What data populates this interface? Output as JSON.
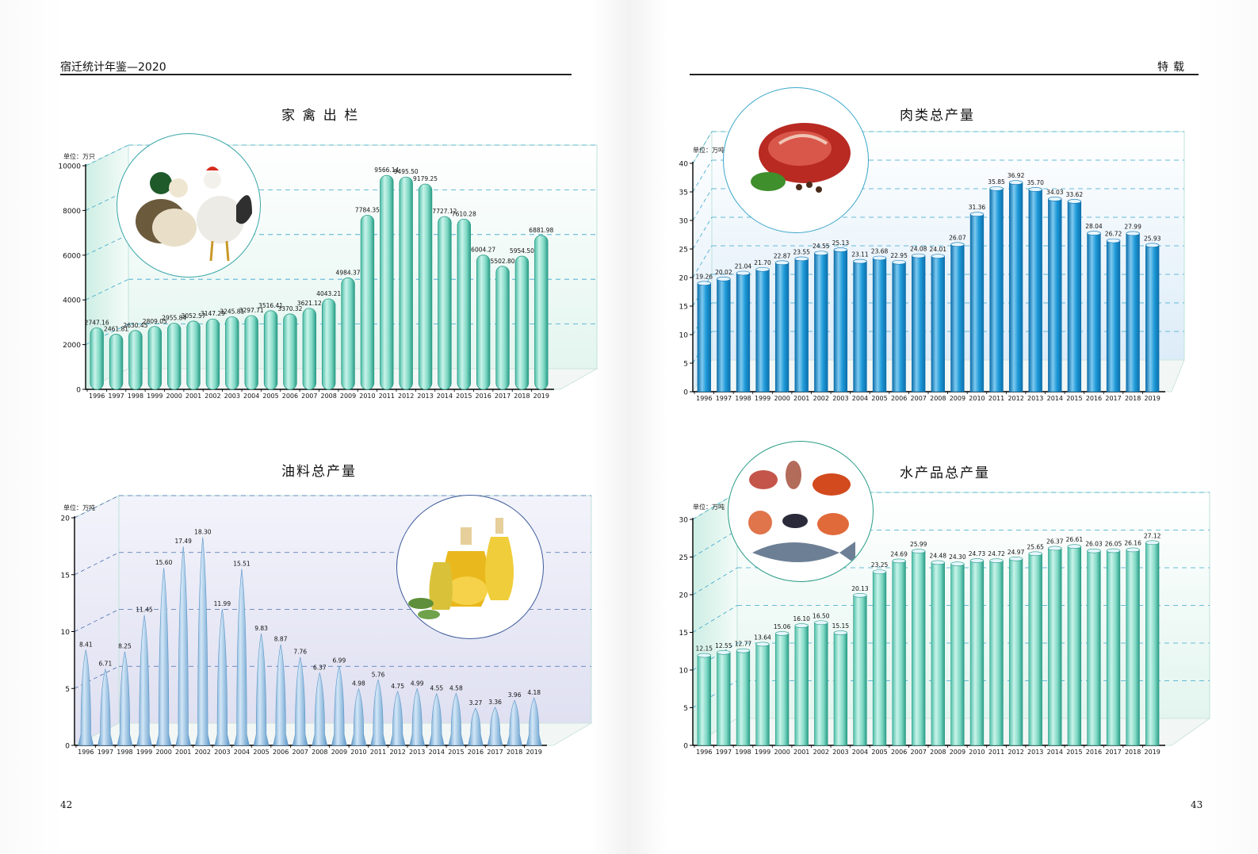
{
  "header": {
    "left_title": "宿迁统计年鉴—2020",
    "right_title": "特载"
  },
  "pages": {
    "left_number": "42",
    "right_number": "43"
  },
  "icons": [
    "duck-and-rooster-photo-icon",
    "meat-photo-icon",
    "oil-bottles-photo-icon",
    "seafood-photo-icon"
  ],
  "colors": {
    "teal_bar": "#7fd8c4",
    "teal_edge": "#2a9c86",
    "blue_bar": "#1e9ad8",
    "blue_edge": "#0d6fab",
    "oil_bar": "#8bbbe2",
    "gridline": "#3aa6c9"
  },
  "chart_data": [
    {
      "type": "bar",
      "title": "家 禽 出 栏",
      "unit": "单位：万只",
      "ylim": [
        0,
        10000
      ],
      "yticks": [
        0,
        2000,
        4000,
        6000,
        8000,
        10000
      ],
      "categories": [
        "1996",
        "1997",
        "1998",
        "1999",
        "2000",
        "2001",
        "2002",
        "2003",
        "2004",
        "2005",
        "2006",
        "2007",
        "2008",
        "2009",
        "2010",
        "2011",
        "2012",
        "2013",
        "2014",
        "2015",
        "2016",
        "2017",
        "2018",
        "2019"
      ],
      "values": [
        2747.16,
        2461.81,
        2630.45,
        2809.05,
        2955.84,
        3052.57,
        3147.29,
        3245.81,
        3297.71,
        3516.41,
        3370.32,
        3621.12,
        4043.21,
        4984.37,
        7784.35,
        9566.14,
        9495.5,
        9179.25,
        7727.12,
        7610.28,
        6004.27,
        5502.8,
        5954.5,
        6881.98
      ],
      "labels": [
        "2747.16",
        "2461.81",
        "2630.45",
        "2809.05",
        "2955.84",
        "3052.57",
        "3147.29",
        "3245.81",
        "3297.71",
        "3516.41",
        "3370.32",
        "3621.12",
        "4043.21",
        "4984.37",
        "7784.35",
        "9566.14",
        "9495.50",
        "9179.25",
        "7727.12",
        "7610.28",
        "6004.27",
        "5502.80",
        "5954.50",
        "6881.98"
      ],
      "grid": true
    },
    {
      "type": "bar",
      "title": "肉类总产量",
      "unit": "单位：万吨",
      "ylim": [
        0,
        40
      ],
      "yticks": [
        0,
        5,
        10,
        15,
        20,
        25,
        30,
        35,
        40
      ],
      "categories": [
        "1996",
        "1997",
        "1998",
        "1999",
        "2000",
        "2001",
        "2002",
        "2003",
        "2004",
        "2005",
        "2006",
        "2007",
        "2008",
        "2009",
        "2010",
        "2011",
        "2012",
        "2013",
        "2014",
        "2015",
        "2016",
        "2017",
        "2018",
        "2019"
      ],
      "values": [
        19.26,
        20.02,
        21.04,
        21.7,
        22.87,
        23.55,
        24.55,
        25.13,
        23.11,
        23.68,
        22.95,
        24.08,
        24.01,
        26.07,
        31.36,
        35.85,
        36.92,
        35.7,
        34.03,
        33.62,
        28.04,
        26.72,
        27.99,
        25.93
      ],
      "labels": [
        "19.26",
        "20.02",
        "21.04",
        "21.70",
        "22.87",
        "23.55",
        "24.55",
        "25.13",
        "23.11",
        "23.68",
        "22.95",
        "24.08",
        "24.01",
        "26.07",
        "31.36",
        "35.85",
        "36.92",
        "35.70",
        "34.03",
        "33.62",
        "28.04",
        "26.72",
        "27.99",
        "25.93"
      ],
      "grid": true
    },
    {
      "type": "bar",
      "title": "油料总产量",
      "unit": "单位：万吨",
      "ylim": [
        0,
        20
      ],
      "yticks": [
        0,
        5,
        10,
        15,
        20
      ],
      "categories": [
        "1996",
        "1997",
        "1998",
        "1999",
        "2000",
        "2001",
        "2002",
        "2003",
        "2004",
        "2005",
        "2006",
        "2007",
        "2008",
        "2009",
        "2010",
        "2011",
        "2012",
        "2013",
        "2014",
        "2015",
        "2016",
        "2017",
        "2018",
        "2019"
      ],
      "values": [
        8.41,
        6.71,
        8.25,
        11.45,
        15.6,
        17.49,
        18.3,
        11.99,
        15.51,
        9.83,
        8.87,
        7.76,
        6.37,
        6.99,
        4.98,
        5.76,
        4.75,
        4.99,
        4.55,
        4.58,
        3.27,
        3.36,
        3.96,
        4.18
      ],
      "labels": [
        "8.41",
        "6.71",
        "8.25",
        "11.45",
        "15.60",
        "17.49",
        "18.30",
        "11.99",
        "15.51",
        "9.83",
        "8.87",
        "7.76",
        "6.37",
        "6.99",
        "4.98",
        "5.76",
        "4.75",
        "4.99",
        "4.55",
        "4.58",
        "3.27",
        "3.36",
        "3.96",
        "4.18"
      ],
      "grid": true
    },
    {
      "type": "bar",
      "title": "水产品总产量",
      "unit": "单位：万吨",
      "ylim": [
        0,
        30
      ],
      "yticks": [
        0,
        5,
        10,
        15,
        20,
        25,
        30
      ],
      "categories": [
        "1996",
        "1997",
        "1998",
        "1999",
        "2000",
        "2001",
        "2002",
        "2003",
        "2004",
        "2005",
        "2006",
        "2007",
        "2008",
        "2009",
        "2010",
        "2011",
        "2012",
        "2013",
        "2014",
        "2015",
        "2016",
        "2017",
        "2018",
        "2019"
      ],
      "values": [
        12.15,
        12.55,
        12.77,
        13.64,
        15.06,
        16.1,
        16.5,
        15.15,
        20.13,
        23.25,
        24.69,
        25.99,
        24.48,
        24.3,
        24.73,
        24.72,
        24.97,
        25.65,
        26.37,
        26.61,
        26.03,
        26.05,
        26.16,
        27.12
      ],
      "labels": [
        "12.15",
        "12.55",
        "12.77",
        "13.64",
        "15.06",
        "16.10",
        "16.50",
        "15.15",
        "20.13",
        "23.25",
        "24.69",
        "25.99",
        "24.48",
        "24.30",
        "24.73",
        "24.72",
        "24.97",
        "25.65",
        "26.37",
        "26.61",
        "26.03",
        "26.05",
        "26.16",
        "27.12"
      ],
      "grid": true
    }
  ]
}
